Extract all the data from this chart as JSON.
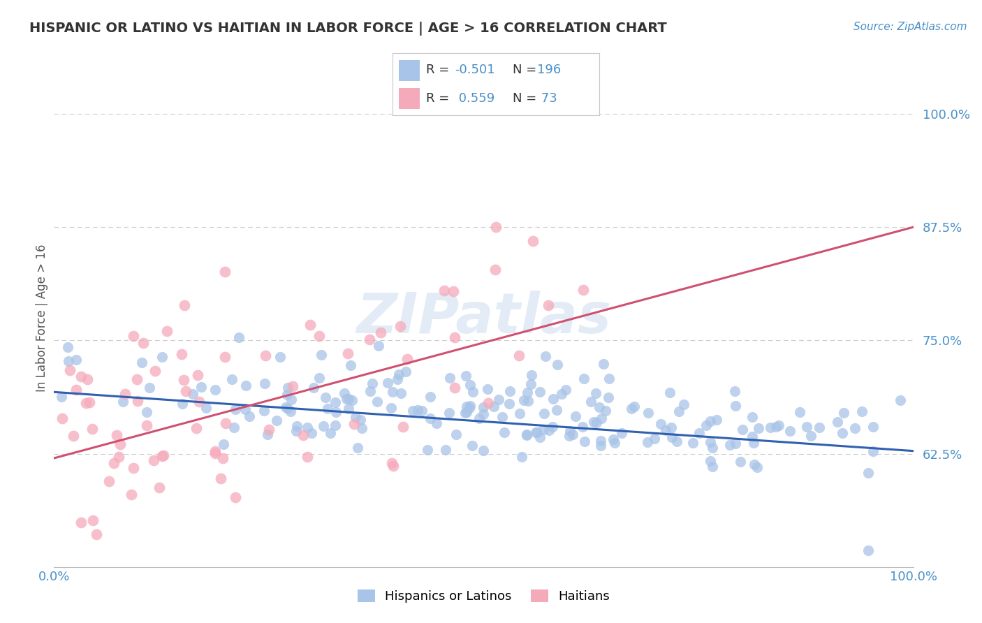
{
  "title": "HISPANIC OR LATINO VS HAITIAN IN LABOR FORCE | AGE > 16 CORRELATION CHART",
  "source_text": "Source: ZipAtlas.com",
  "ylabel": "In Labor Force | Age > 16",
  "y_tick_values": [
    0.625,
    0.75,
    0.875,
    1.0
  ],
  "xlim": [
    0.0,
    1.0
  ],
  "ylim": [
    0.5,
    1.05
  ],
  "blue_R": -0.501,
  "blue_N": 196,
  "pink_R": 0.559,
  "pink_N": 73,
  "blue_color": "#a8c4e8",
  "pink_color": "#f5aaba",
  "blue_line_color": "#3060b0",
  "pink_line_color": "#d05070",
  "title_color": "#333333",
  "axis_label_color": "#4a90c8",
  "legend_value_color": "#4a90c8",
  "legend_text_color": "#333333",
  "grid_color": "#cccccc",
  "legend_label_blue": "Hispanics or Latinos",
  "legend_label_pink": "Haitians",
  "watermark_text": "ZIPatlas",
  "blue_trend_start_y": 0.693,
  "blue_trend_end_y": 0.628,
  "pink_trend_start_y": 0.62,
  "pink_trend_end_y": 0.875,
  "blue_seed": 42,
  "pink_seed": 99
}
